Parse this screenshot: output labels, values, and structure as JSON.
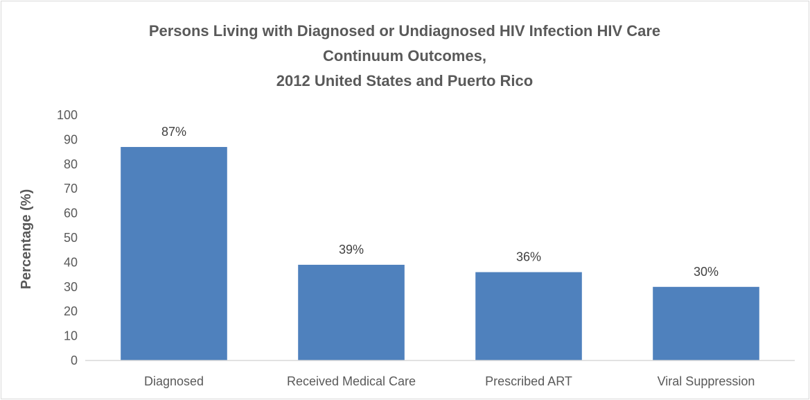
{
  "chart_data": {
    "type": "bar",
    "title_lines": [
      "Persons Living with Diagnosed or Undiagnosed HIV Infection HIV Care",
      "Continuum Outcomes,",
      "2012 United States and Puerto Rico"
    ],
    "xlabel": "",
    "ylabel": "Percentage (%)",
    "categories": [
      "Diagnosed",
      "Received Medical Care",
      "Prescribed ART",
      "Viral Suppression"
    ],
    "values": [
      87,
      39,
      36,
      30
    ],
    "data_labels": [
      "87%",
      "39%",
      "36%",
      "30%"
    ],
    "ylim": [
      0,
      100
    ],
    "yticks": [
      "0",
      "10",
      "20",
      "30",
      "40",
      "50",
      "60",
      "70",
      "80",
      "90",
      "100"
    ],
    "grid": false,
    "legend": "none",
    "colors": {
      "bar": "#4f81bd",
      "axis": "#d9d9d9",
      "text": "#595959"
    }
  }
}
